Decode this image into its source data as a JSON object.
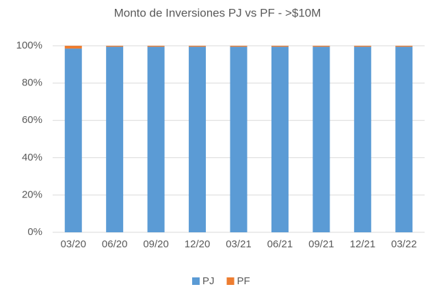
{
  "chart_data": {
    "type": "stacked_bar",
    "title": "Monto de Inversiones PJ vs PF - >$10M",
    "categories": [
      "03/20",
      "06/20",
      "09/20",
      "12/20",
      "03/21",
      "06/21",
      "09/21",
      "12/21",
      "03/22"
    ],
    "series": [
      {
        "name": "PJ",
        "color": "#5b9bd5",
        "values": [
          98.5,
          99.5,
          99.5,
          99.5,
          99.5,
          99.5,
          99.5,
          99.5,
          99.5
        ]
      },
      {
        "name": "PF",
        "color": "#ed7d31",
        "values": [
          1.5,
          0.5,
          0.5,
          0.5,
          0.5,
          0.5,
          0.5,
          0.5,
          0.5
        ]
      }
    ],
    "ylim": [
      0,
      100
    ],
    "yticks": [
      {
        "value": 0,
        "label": "0%"
      },
      {
        "value": 20,
        "label": "20%"
      },
      {
        "value": 40,
        "label": "40%"
      },
      {
        "value": 60,
        "label": "60%"
      },
      {
        "value": 80,
        "label": "80%"
      },
      {
        "value": 100,
        "label": "100%"
      }
    ],
    "grid": true,
    "legend": "bottom"
  }
}
